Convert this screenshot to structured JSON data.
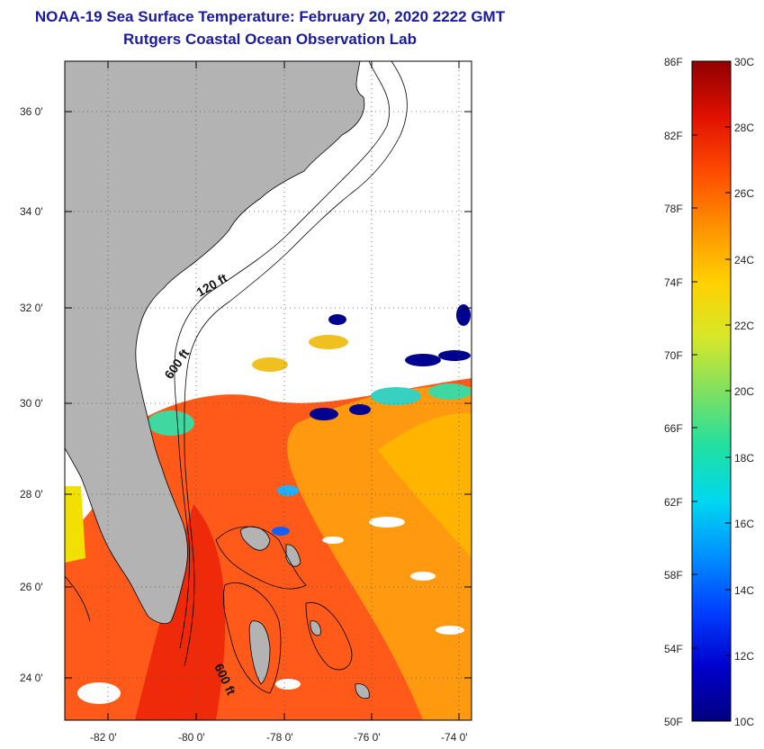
{
  "map": {
    "title": "NOAA-19 Sea Surface Temperature:  February 20, 2020 2222 GMT",
    "subtitle": "Rutgers Coastal Ocean Observation Lab",
    "latitude_labels": [
      "36 0'",
      "34 0'",
      "32 0'",
      "30 0'",
      "28 0'",
      "26 0'",
      "24 0'"
    ],
    "longitude_labels": [
      "-82 0'",
      "-80 0'",
      "-78 0'",
      "-76 0'",
      "-74 0'"
    ],
    "contour_labels": [
      "120 ft",
      "600 ft",
      "600 ft"
    ],
    "land_color": "#b3b3b3",
    "frame_color": "#000000"
  },
  "colorbar": {
    "fahrenheit_labels": [
      "86F",
      "82F",
      "78F",
      "74F",
      "70F",
      "66F",
      "62F",
      "58F",
      "54F",
      "50F"
    ],
    "celsius_labels": [
      "30C",
      "28C",
      "26C",
      "24C",
      "22C",
      "20C",
      "18C",
      "16C",
      "14C",
      "12C",
      "10C"
    ],
    "colors": [
      "#000080",
      "#0000cd",
      "#0040ff",
      "#0090ff",
      "#00d8f0",
      "#20e0a0",
      "#80e060",
      "#d8e828",
      "#ffd000",
      "#ff9000",
      "#ff4a00",
      "#e01000",
      "#900000"
    ]
  }
}
